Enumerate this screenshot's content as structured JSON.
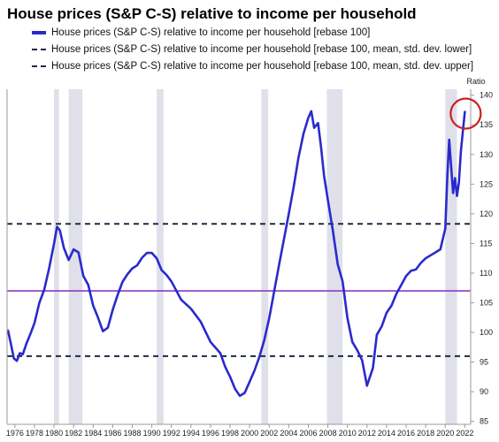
{
  "chart_data": {
    "type": "line",
    "title": "House prices (S&P C-S) relative to income per household",
    "ylabel": "Ratio",
    "xlabel": "",
    "xlim": [
      1975.2,
      2022.6
    ],
    "ylim": [
      84.5,
      141
    ],
    "x_ticks": [
      "1976",
      "1978",
      "1980",
      "1982",
      "1984",
      "1986",
      "1988",
      "1990",
      "1992",
      "1994",
      "1996",
      "1998",
      "2000",
      "2002",
      "2004",
      "2006",
      "2008",
      "2010",
      "2012",
      "2014",
      "2016",
      "2018",
      "2020",
      "2022"
    ],
    "y_ticks": [
      "85",
      "90",
      "95",
      "100",
      "105",
      "110",
      "115",
      "120",
      "125",
      "130",
      "135",
      "140"
    ],
    "recessions": [
      [
        1980.0,
        1980.5
      ],
      [
        1981.5,
        1982.9
      ],
      [
        1990.5,
        1991.2
      ],
      [
        2001.2,
        2001.9
      ],
      [
        2007.9,
        2009.5
      ],
      [
        2020.0,
        2021.2
      ]
    ],
    "series": [
      {
        "name": "House prices (S&P C-S) relative to income per household [rebase 100]",
        "style": "solid",
        "x": [
          1975.3,
          1975.6,
          1975.9,
          1976.2,
          1976.5,
          1976.8,
          1977.2,
          1977.6,
          1978.0,
          1978.5,
          1979.0,
          1979.5,
          1980.0,
          1980.3,
          1980.6,
          1981.0,
          1981.5,
          1982.0,
          1982.5,
          1983.0,
          1983.5,
          1984.0,
          1984.5,
          1985.0,
          1985.5,
          1986.0,
          1986.5,
          1987.0,
          1987.5,
          1988.0,
          1988.5,
          1989.0,
          1989.5,
          1990.0,
          1990.5,
          1991.0,
          1991.5,
          1992.0,
          1993.0,
          1994.0,
          1995.0,
          1996.0,
          1997.0,
          1997.5,
          1998.0,
          1998.5,
          1999.0,
          1999.5,
          2000.0,
          2000.5,
          2001.0,
          2001.5,
          2002.0,
          2003.0,
          2004.0,
          2004.5,
          2005.0,
          2005.5,
          2006.0,
          2006.3,
          2006.6,
          2007.0,
          2007.3,
          2007.6,
          2008.0,
          2008.5,
          2009.0,
          2009.5,
          2010.0,
          2010.5,
          2011.0,
          2011.5,
          2012.0,
          2012.3,
          2012.6,
          2013.0,
          2013.5,
          2014.0,
          2014.5,
          2015.0,
          2015.5,
          2016.0,
          2016.5,
          2017.0,
          2017.5,
          2018.0,
          2018.5,
          2019.0,
          2019.5,
          2020.0,
          2020.2,
          2020.4,
          2020.6,
          2020.8,
          2021.0,
          2021.2,
          2021.4,
          2021.6,
          2021.8,
          2022.0
        ],
        "y": [
          100.3,
          98,
          95.6,
          95.2,
          96.5,
          96.3,
          98.2,
          99.8,
          101.6,
          105,
          107.2,
          110.8,
          115,
          117.8,
          117.2,
          114.3,
          112.2,
          114,
          113.5,
          109.5,
          108,
          104.5,
          102.5,
          100.2,
          100.8,
          103.8,
          106.3,
          108.5,
          109.8,
          110.8,
          111.3,
          112.6,
          113.4,
          113.4,
          112.5,
          110.5,
          109.7,
          108.6,
          105.5,
          104,
          101.8,
          98.4,
          96.5,
          94.2,
          92.5,
          90.5,
          89.3,
          89.8,
          91.7,
          93.6,
          95.9,
          98.7,
          102.4,
          111.3,
          120,
          124.5,
          129.5,
          133.5,
          136.2,
          137.3,
          134.5,
          135.3,
          131.2,
          126.5,
          122.3,
          117.3,
          111.5,
          108.6,
          102.4,
          98.4,
          97,
          95.3,
          91,
          92.5,
          94,
          99.6,
          101,
          103.3,
          104.5,
          106.5,
          108,
          109.5,
          110.4,
          110.6,
          111.7,
          112.5,
          113,
          113.5,
          114,
          117.5,
          126,
          132.5,
          128,
          123.5,
          126,
          123,
          125.3,
          130.5,
          134,
          137.2
        ]
      },
      {
        "name": "House prices (S&P C-S) relative to income per household [rebase 100, mean, std. dev. lower]",
        "style": "dashed",
        "constant": 96
      },
      {
        "name": "House prices (S&P C-S) relative to income per household [rebase 100, mean, std. dev. upper]",
        "style": "dashed",
        "constant": 118.3
      }
    ],
    "mean_line": 107,
    "grid": false,
    "legend_position": "top-left"
  },
  "colors": {
    "price_line": "#2a2acc",
    "dashed_lines": "#1e2a44",
    "mean_line": "#8a3cc4",
    "recession_band": "#dfe0ea",
    "highlight_circle": "#cc1f1f",
    "axis": "#9a9a9a"
  }
}
